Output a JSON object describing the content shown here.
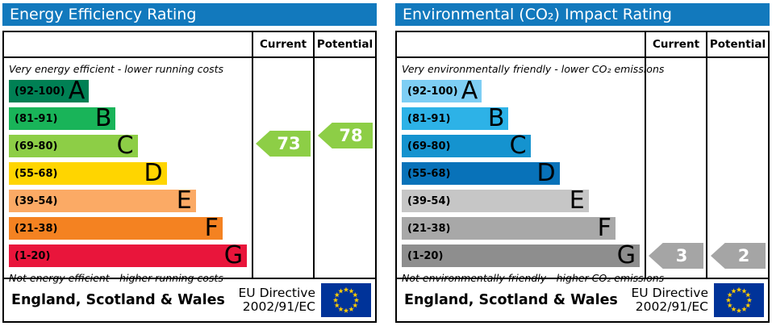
{
  "energy": {
    "title": "Energy Efficiency Rating",
    "header": {
      "current": "Current",
      "potential": "Potential"
    },
    "top_note": "Very energy efficient - lower running costs",
    "bottom_note": "Not energy efficient - higher running costs",
    "bands": [
      {
        "range": "(92-100)",
        "letter": "A",
        "color": "#008054"
      },
      {
        "range": "(81-91)",
        "letter": "B",
        "color": "#19b459"
      },
      {
        "range": "(69-80)",
        "letter": "C",
        "color": "#8dce46"
      },
      {
        "range": "(55-68)",
        "letter": "D",
        "color": "#ffd500"
      },
      {
        "range": "(39-54)",
        "letter": "E",
        "color": "#fbaa65"
      },
      {
        "range": "(21-38)",
        "letter": "F",
        "color": "#f48221"
      },
      {
        "range": "(1-20)",
        "letter": "G",
        "color": "#e9153b"
      }
    ],
    "current": {
      "value": "73",
      "color": "#8dce46"
    },
    "potential": {
      "value": "78",
      "color": "#8dce46"
    },
    "footer": {
      "region": "England, Scotland & Wales",
      "directive_line1": "EU Directive",
      "directive_line2": "2002/91/EC"
    }
  },
  "co2": {
    "title": "Environmental (CO₂) Impact Rating",
    "header": {
      "current": "Current",
      "potential": "Potential"
    },
    "top_note": "Very environmentally friendly - lower CO₂ emissions",
    "bottom_note": "Not environmentally friendly - higher CO₂ emissions",
    "bands": [
      {
        "range": "(92-100)",
        "letter": "A",
        "color": "#7ecef4"
      },
      {
        "range": "(81-91)",
        "letter": "B",
        "color": "#2db2e7"
      },
      {
        "range": "(69-80)",
        "letter": "C",
        "color": "#1593cf"
      },
      {
        "range": "(55-68)",
        "letter": "D",
        "color": "#0872b9"
      },
      {
        "range": "(39-54)",
        "letter": "E",
        "color": "#c6c6c6"
      },
      {
        "range": "(21-38)",
        "letter": "F",
        "color": "#a8a8a8"
      },
      {
        "range": "(1-20)",
        "letter": "G",
        "color": "#8e8e8e"
      }
    ],
    "current": {
      "value": "3",
      "color": "#a5a5a5"
    },
    "potential": {
      "value": "2",
      "color": "#a5a5a5"
    },
    "footer": {
      "region": "England, Scotland & Wales",
      "directive_line1": "EU Directive",
      "directive_line2": "2002/91/EC"
    }
  },
  "flag": {
    "bg": "#003399",
    "star": "#ffcc00"
  },
  "chart_data": [
    {
      "type": "bar",
      "title": "Energy Efficiency Rating",
      "categories": [
        "A (92-100)",
        "B (81-91)",
        "C (69-80)",
        "D (55-68)",
        "E (39-54)",
        "F (21-38)",
        "G (1-20)"
      ],
      "band_colors": [
        "#008054",
        "#19b459",
        "#8dce46",
        "#ffd500",
        "#fbaa65",
        "#f48221",
        "#e9153b"
      ],
      "series": [
        {
          "name": "Current",
          "values": [
            73
          ],
          "band": "C"
        },
        {
          "name": "Potential",
          "values": [
            78
          ],
          "band": "C"
        }
      ],
      "xlim": [
        1,
        100
      ],
      "annotations": [
        "Very energy efficient - lower running costs",
        "Not energy efficient - higher running costs"
      ],
      "footer": "England, Scotland & Wales — EU Directive 2002/91/EC"
    },
    {
      "type": "bar",
      "title": "Environmental (CO₂) Impact Rating",
      "categories": [
        "A (92-100)",
        "B (81-91)",
        "C (69-80)",
        "D (55-68)",
        "E (39-54)",
        "F (21-38)",
        "G (1-20)"
      ],
      "band_colors": [
        "#7ecef4",
        "#2db2e7",
        "#1593cf",
        "#0872b9",
        "#c6c6c6",
        "#a8a8a8",
        "#8e8e8e"
      ],
      "series": [
        {
          "name": "Current",
          "values": [
            3
          ],
          "band": "G"
        },
        {
          "name": "Potential",
          "values": [
            2
          ],
          "band": "G"
        }
      ],
      "xlim": [
        1,
        100
      ],
      "annotations": [
        "Very environmentally friendly - lower CO₂ emissions",
        "Not environmentally friendly - higher CO₂ emissions"
      ],
      "footer": "England, Scotland & Wales — EU Directive 2002/91/EC"
    }
  ]
}
